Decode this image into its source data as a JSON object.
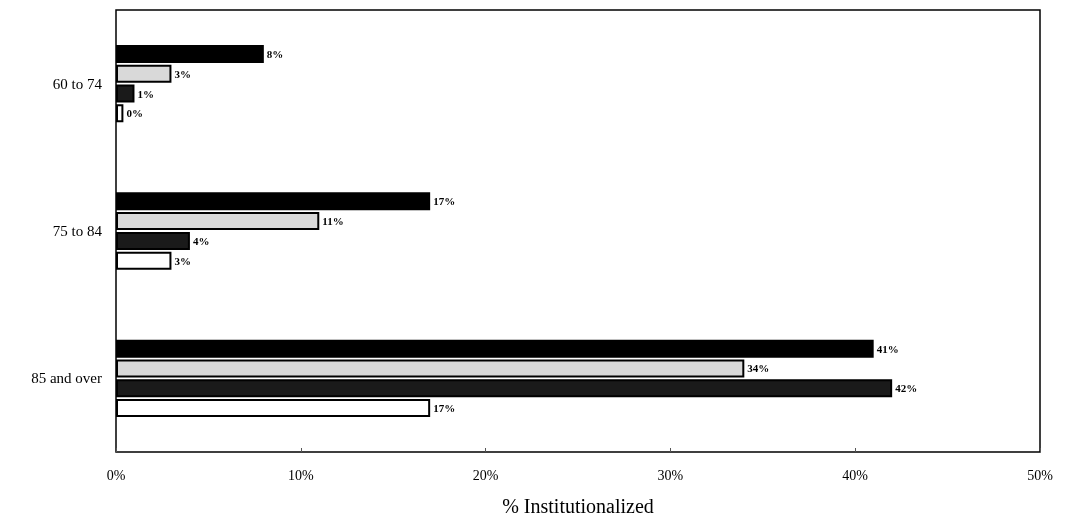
{
  "chart_data": {
    "type": "bar",
    "orientation": "horizontal",
    "xlabel": "% Institutionalized",
    "categories": [
      "60 to 74",
      "75 to 84",
      "85 and over"
    ],
    "series": [
      {
        "color": "#000000",
        "values": [
          8,
          17,
          41
        ],
        "value_labels": [
          "8%",
          "17%",
          "41%"
        ]
      },
      {
        "color": "#d9d9d9",
        "values": [
          3,
          11,
          34
        ],
        "value_labels": [
          "3%",
          "11%",
          "34%"
        ]
      },
      {
        "color": "#1a1a1a",
        "values": [
          1,
          4,
          42
        ],
        "value_labels": [
          "1%",
          "4%",
          "42%"
        ]
      },
      {
        "color": "#ffffff",
        "values": [
          0.4,
          3,
          17
        ],
        "value_labels": [
          "0%",
          "3%",
          "17%"
        ]
      }
    ],
    "xlim": [
      0,
      50
    ],
    "xticks": [
      {
        "value": 0,
        "label": "0%"
      },
      {
        "value": 10,
        "label": "10%"
      },
      {
        "value": 20,
        "label": "20%"
      },
      {
        "value": 30,
        "label": "30%"
      },
      {
        "value": 40,
        "label": "40%"
      },
      {
        "value": 50,
        "label": "50%"
      }
    ],
    "grid": false
  }
}
